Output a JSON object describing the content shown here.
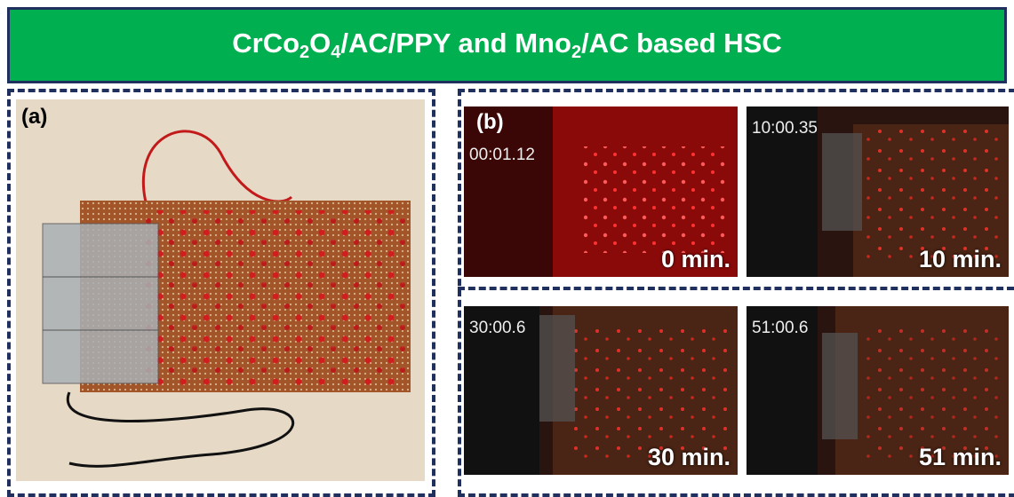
{
  "header": {
    "title_parts": [
      "CrCo",
      "2",
      "O",
      "4",
      "/AC/PPY and Mno",
      "2",
      "/AC based HSC"
    ]
  },
  "panel_a": {
    "label": "(a)"
  },
  "panel_b": {
    "label": "(b)",
    "frames": [
      {
        "timer": "00:01.12",
        "caption": "0 min."
      },
      {
        "timer": "10:00.35",
        "caption": "10 min."
      },
      {
        "timer": "30:00.6",
        "caption": "30 min."
      },
      {
        "timer": "51:00.6",
        "caption": "51 min."
      }
    ]
  }
}
